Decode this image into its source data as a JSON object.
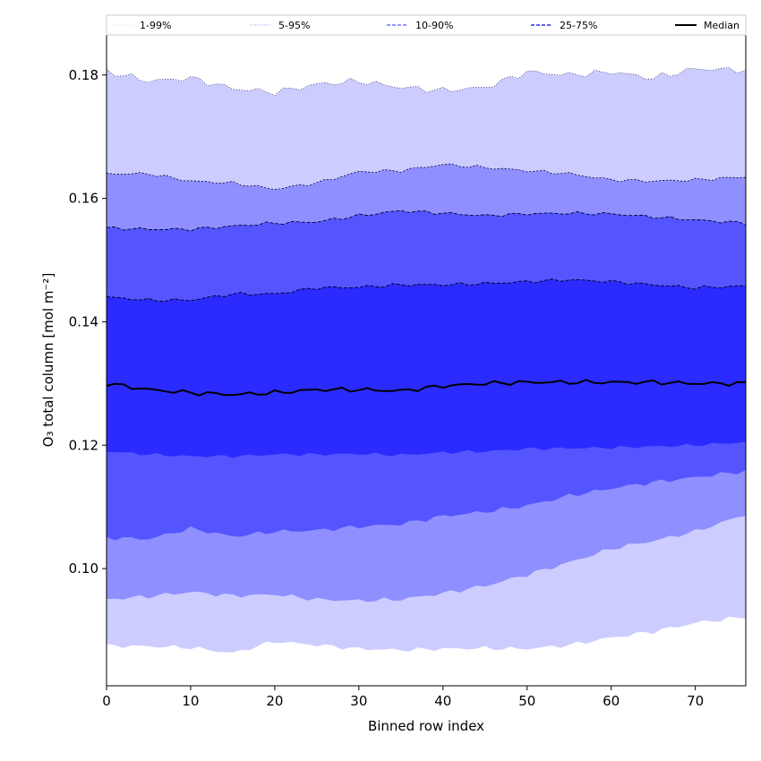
{
  "chart_data": {
    "type": "area",
    "xlabel": "Binned row index",
    "ylabel": "O₃ total column [mol m⁻²]",
    "xlim": [
      0,
      76
    ],
    "ylim": [
      0.081,
      0.1865
    ],
    "xticks": [
      0,
      10,
      20,
      30,
      40,
      50,
      60,
      70
    ],
    "yticks": [
      0.1,
      0.12,
      0.14,
      0.16,
      0.18
    ],
    "ytick_labels": [
      "0.10",
      "0.12",
      "0.14",
      "0.16",
      "0.18"
    ],
    "grid": false,
    "legend_position": "top",
    "legend": [
      {
        "label": "1-99%",
        "color": "#ccccff",
        "style": "dotted"
      },
      {
        "label": "5-95%",
        "color": "#8f8fff",
        "style": "dotted"
      },
      {
        "label": "10-90%",
        "color": "#5555ff",
        "style": "dashed"
      },
      {
        "label": "25-75%",
        "color": "#2b2bff",
        "style": "dashed"
      },
      {
        "label": "Median",
        "color": "#000000",
        "style": "solid"
      }
    ],
    "band_colors": {
      "p1_p99": "#ccccff",
      "p5_p95": "#8f8fff",
      "p10_p90": "#5555ff",
      "p25_p75": "#2b2bff"
    },
    "x_anchor": [
      0,
      5,
      10,
      15,
      20,
      25,
      30,
      35,
      40,
      45,
      50,
      55,
      60,
      65,
      70,
      76
    ],
    "percentiles": {
      "p1": [
        0.0875,
        0.0874,
        0.0872,
        0.0863,
        0.0882,
        0.0876,
        0.087,
        0.0868,
        0.087,
        0.0871,
        0.087,
        0.0876,
        0.0888,
        0.0898,
        0.0912,
        0.0922
      ],
      "p5": [
        0.095,
        0.0955,
        0.0962,
        0.0956,
        0.0958,
        0.095,
        0.0948,
        0.095,
        0.096,
        0.0972,
        0.099,
        0.101,
        0.1032,
        0.1045,
        0.106,
        0.1088
      ],
      "p10": [
        0.105,
        0.1048,
        0.1065,
        0.1052,
        0.106,
        0.1062,
        0.1068,
        0.1072,
        0.1085,
        0.1092,
        0.1102,
        0.1118,
        0.113,
        0.114,
        0.1148,
        0.1158
      ],
      "p25": [
        0.119,
        0.1185,
        0.1182,
        0.1182,
        0.1185,
        0.1185,
        0.1186,
        0.1184,
        0.1188,
        0.119,
        0.1194,
        0.1195,
        0.1196,
        0.1198,
        0.12,
        0.1205
      ],
      "median": [
        0.13,
        0.129,
        0.1285,
        0.1282,
        0.1285,
        0.129,
        0.129,
        0.1288,
        0.1296,
        0.13,
        0.1302,
        0.1302,
        0.1302,
        0.1302,
        0.13,
        0.13
      ],
      "p75": [
        0.144,
        0.1435,
        0.1435,
        0.1445,
        0.1445,
        0.1455,
        0.1456,
        0.146,
        0.146,
        0.1462,
        0.1465,
        0.1468,
        0.1465,
        0.146,
        0.1455,
        0.1458
      ],
      "p90": [
        0.1552,
        0.155,
        0.155,
        0.1555,
        0.156,
        0.1562,
        0.1572,
        0.158,
        0.1576,
        0.1572,
        0.1575,
        0.1576,
        0.1575,
        0.157,
        0.1565,
        0.156
      ],
      "p95": [
        0.164,
        0.164,
        0.1628,
        0.1625,
        0.1615,
        0.1625,
        0.1643,
        0.1645,
        0.1655,
        0.165,
        0.1645,
        0.164,
        0.163,
        0.1628,
        0.163,
        0.1635
      ],
      "p99": [
        0.1806,
        0.179,
        0.1795,
        0.1778,
        0.1772,
        0.1785,
        0.179,
        0.178,
        0.1775,
        0.178,
        0.1805,
        0.18,
        0.1805,
        0.1795,
        0.181,
        0.1808
      ]
    }
  }
}
